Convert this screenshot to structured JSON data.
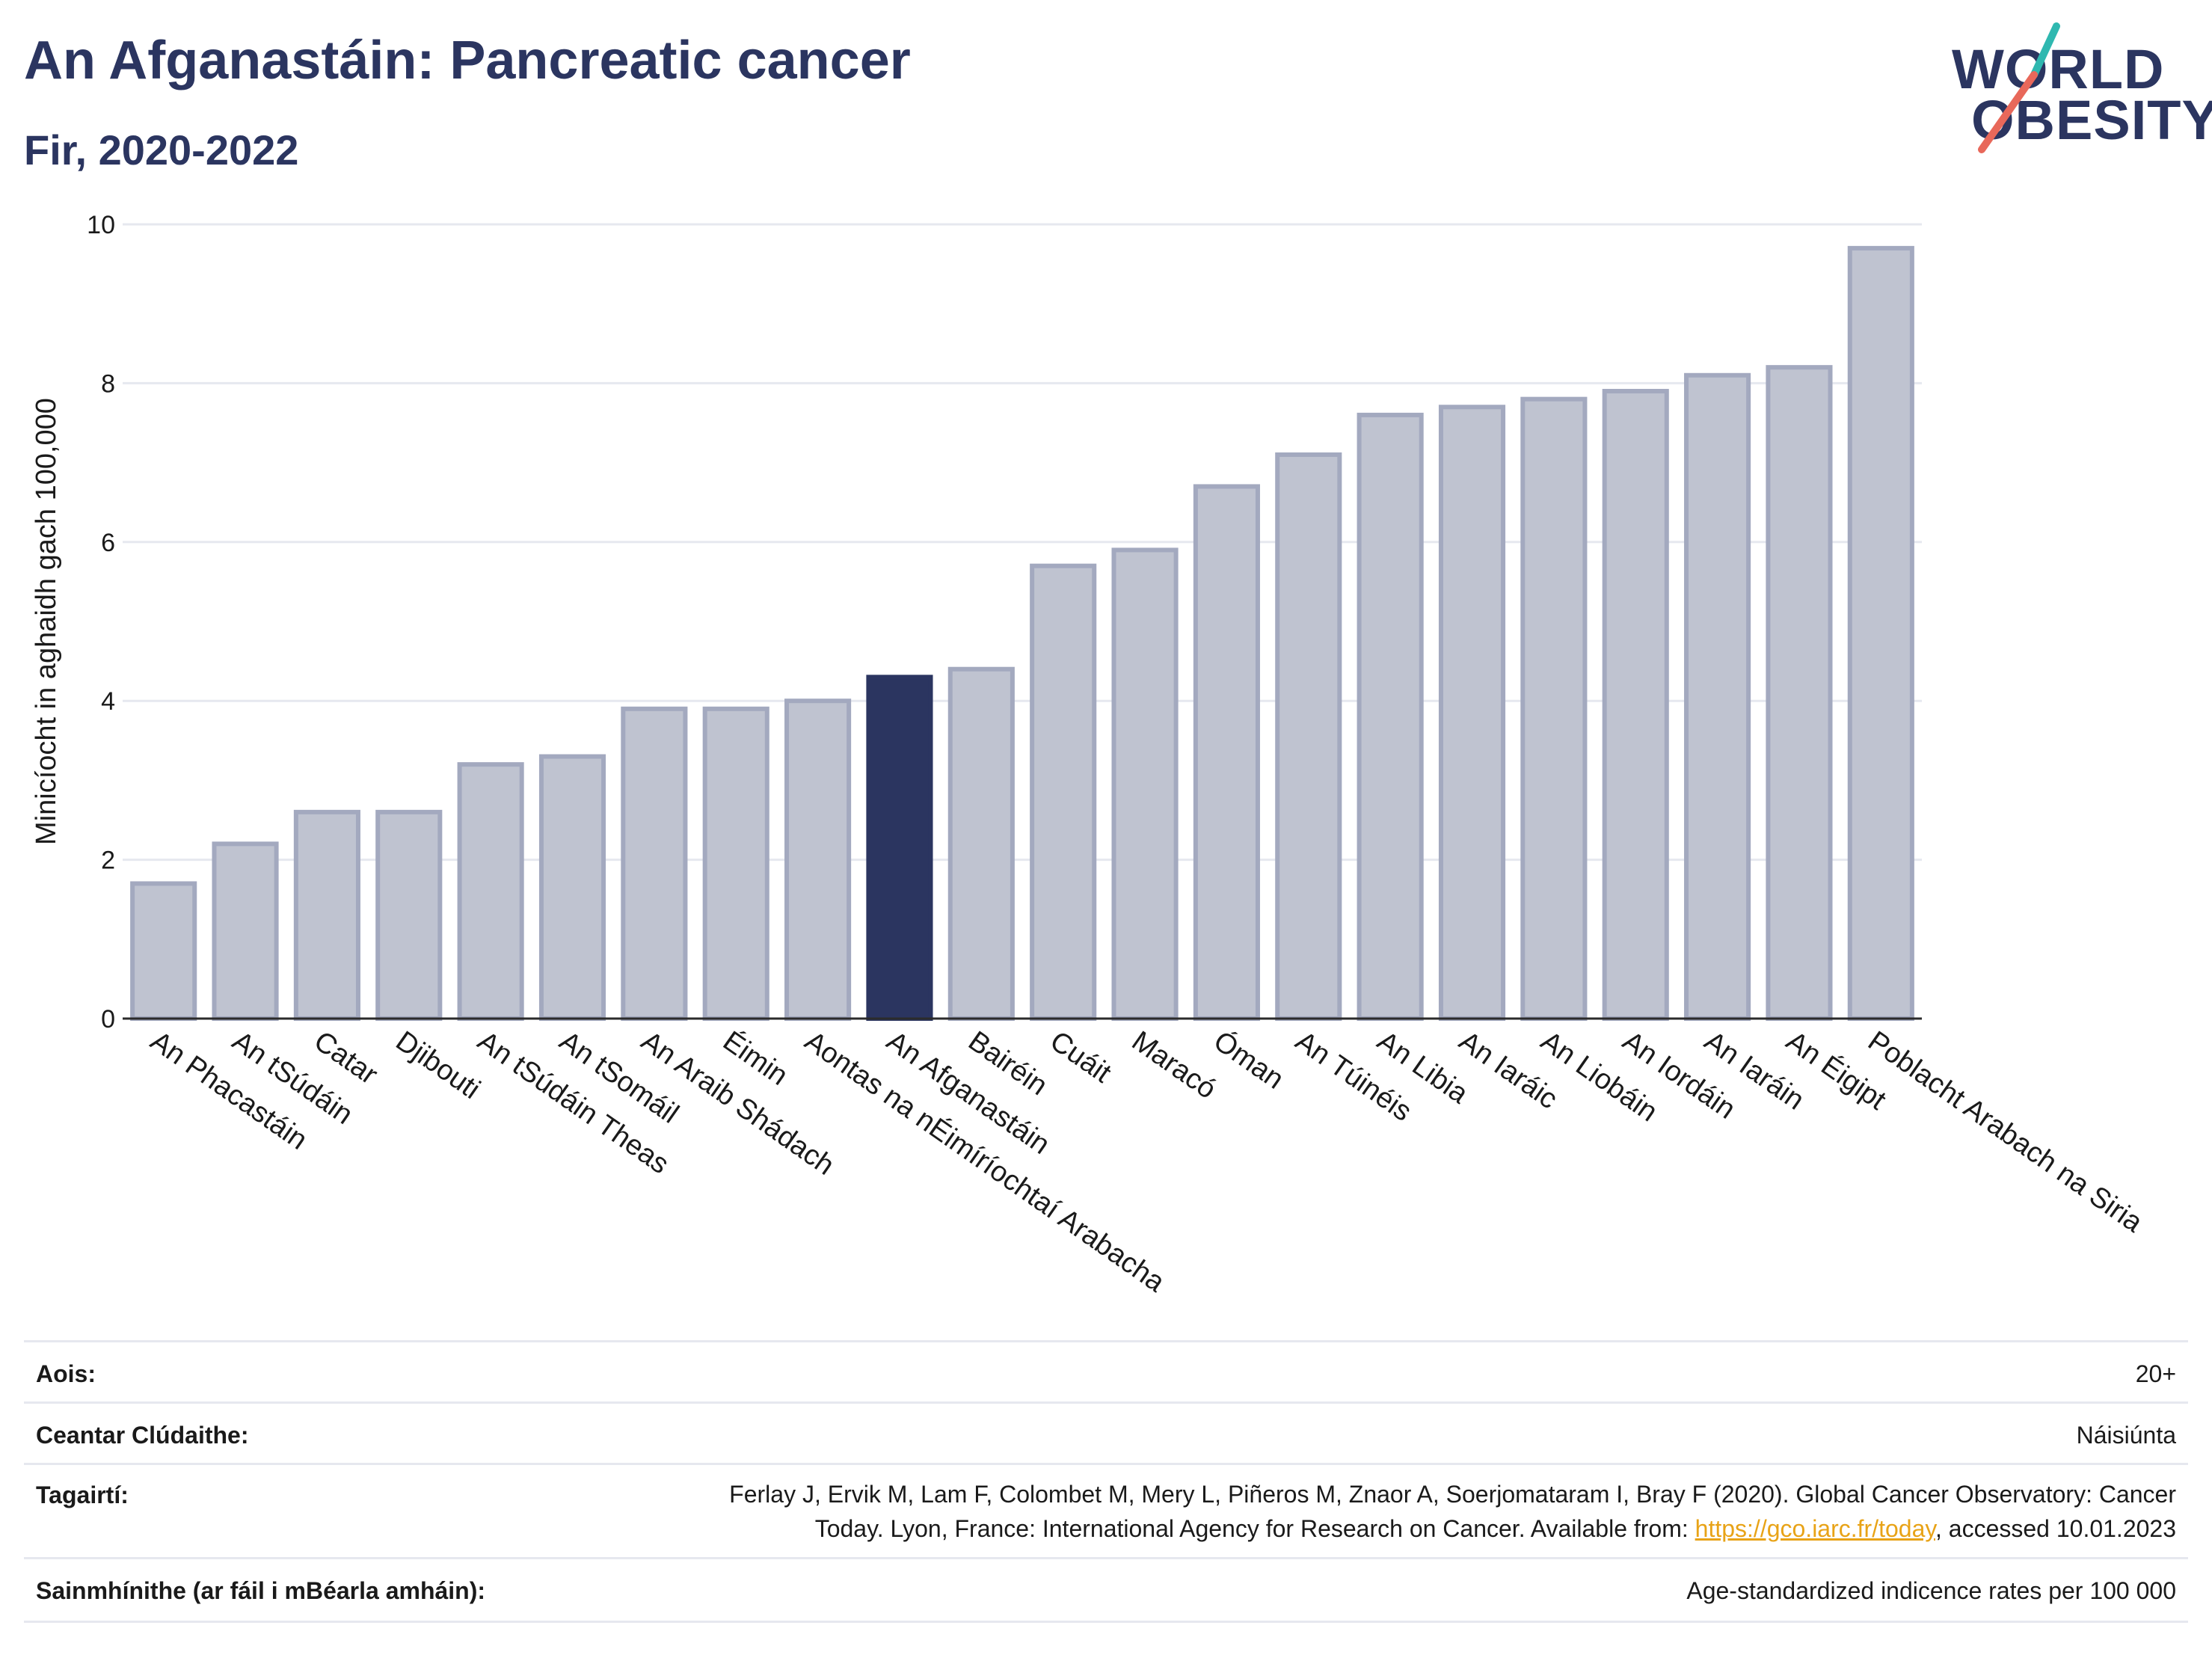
{
  "header": {
    "title": "An Afganastáin: Pancreatic cancer",
    "subtitle": "Fir, 2020-2022"
  },
  "logo": {
    "line1": "WORLD",
    "line2": "OBESITY"
  },
  "colors": {
    "bar": "#bfc3d0",
    "bar_edge": "#a3a9bf",
    "highlight": "#2b3560",
    "text": "#2b3560"
  },
  "chart_data": {
    "type": "bar",
    "ylabel": "Minicíocht in aghaidh gach 100,000",
    "ylim": [
      0,
      10
    ],
    "yticks": [
      0,
      2,
      4,
      6,
      8,
      10
    ],
    "grid": true,
    "highlight": "An Afganastáin",
    "categories": [
      "An Phacastáin",
      "An tSúdáin",
      "Catar",
      "Djibouti",
      "An tSúdáin Theas",
      "An tSomáil",
      "An Araib Shádach",
      "Éimin",
      "Aontas na nÉimíríochtaí Arabacha",
      "An Afganastáin",
      "Bairéin",
      "Cuáit",
      "Maracó",
      "Óman",
      "An Túinéis",
      "An Libia",
      "An Iaráic",
      "An Liobáin",
      "An Iordáin",
      "An Iaráin",
      "An Éigipt",
      "Poblacht Arabach na Siria"
    ],
    "values": [
      1.7,
      2.2,
      2.6,
      2.6,
      3.2,
      3.3,
      3.9,
      3.9,
      4.0,
      4.3,
      4.4,
      5.7,
      5.9,
      6.7,
      7.1,
      7.6,
      7.7,
      7.8,
      7.9,
      8.1,
      8.2,
      9.7
    ]
  },
  "meta": {
    "age_label": "Aois:",
    "age_value": "20+",
    "coverage_label": "Ceantar Clúdaithe:",
    "coverage_value": "Náisiúnta",
    "refs_label": "Tagairtí:",
    "refs_line1": "Ferlay J, Ervik M, Lam F, Colombet M, Mery L, Piñeros M, Znaor A, Soerjomataram I, Bray F (2020). Global Cancer Observatory: Cancer",
    "refs_line2_pre": "Today. Lyon, France: International Agency for Research on Cancer. Available from: ",
    "refs_link": "https://gco.iarc.fr/today",
    "refs_line2_post": ", accessed 10.01.2023",
    "defs_label": "Sainmhínithe (ar fáil i mBéarla amháin):",
    "defs_value": "Age-standardized indicence rates per 100 000"
  }
}
